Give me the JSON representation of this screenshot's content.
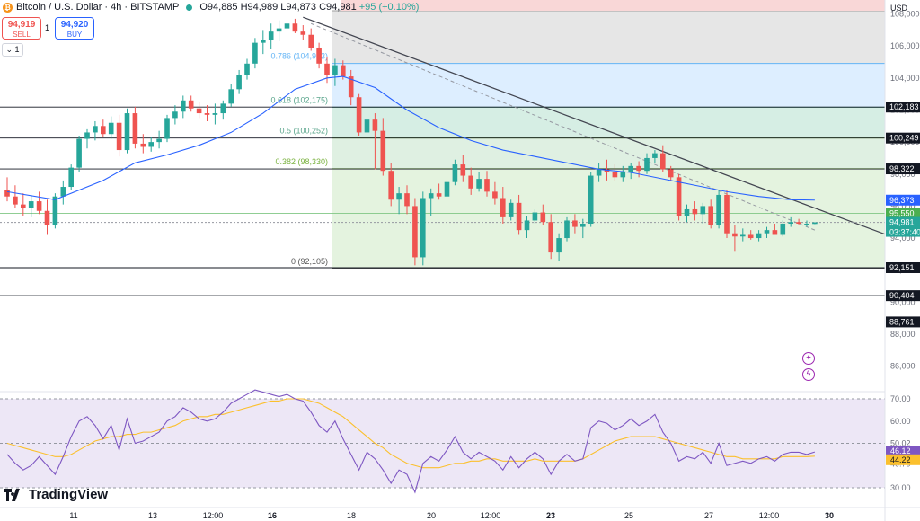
{
  "header": {
    "symbol": "Bitcoin / U.S. Dollar · 4h · BITSTAMP",
    "ohlc": {
      "o": "O94,885",
      "h": "H94,989",
      "l": "L94,873",
      "c": "C94,981",
      "chg": "+95 (+0.10%)"
    },
    "coin_glyph": "₿"
  },
  "trade": {
    "sell_price": "94,919",
    "sell_label": "SELL",
    "spread": "1",
    "buy_price": "94,920",
    "buy_label": "BUY"
  },
  "collapse_label": "⌄ 1",
  "currency": "USD",
  "logo": "TradingView",
  "x_axis_labels": [
    "11",
    "13",
    "12:00",
    "16",
    "18",
    "20",
    "12:00",
    "23",
    "25",
    "27",
    "12:00",
    "30"
  ],
  "price_ticks": [
    "108,000",
    "106,000",
    "104,000",
    "102,000",
    "100,000",
    "98,000",
    "96,000",
    "94,000",
    "92,000",
    "90,000",
    "88,000",
    "86,000"
  ],
  "rsi_ticks": [
    "70.00",
    "60.00",
    "50.02",
    "40.70",
    "30.00"
  ],
  "price_labels": [
    {
      "text": "102,183",
      "kind": "dark"
    },
    {
      "text": "100,249",
      "kind": "dark"
    },
    {
      "text": "98,322",
      "kind": "dark"
    },
    {
      "text": "96,373",
      "kind": "blue"
    },
    {
      "text": "95,550",
      "kind": "green"
    },
    {
      "text": "94,981",
      "kind": "last"
    },
    {
      "text": "03:37:40",
      "kind": "last"
    },
    {
      "text": "92,151",
      "kind": "dark"
    },
    {
      "text": "90,404",
      "kind": "dark"
    },
    {
      "text": "88,761",
      "kind": "dark"
    }
  ],
  "rsi_labels": [
    {
      "text": "46.12",
      "kind": "purple"
    },
    {
      "text": "44.22",
      "kind": "yellow"
    }
  ],
  "fib_labels": [
    "0.786 (104,913)",
    "0.618 (102,175)",
    "0.5 (100,252)",
    "0.382 (98,330)",
    "0 (92,105)"
  ],
  "colors": {
    "up": "#26a69a",
    "down": "#ef5350",
    "ma": "#2962ff",
    "rsi": "#7e57c2",
    "rsi_ma": "#fbc02d",
    "trend": "#434651"
  },
  "chart_data": {
    "type": "candlestick",
    "interval": "4h",
    "ohlc": [
      [
        97000,
        97800,
        96300,
        96600
      ],
      [
        96600,
        97300,
        95900,
        96100
      ],
      [
        96100,
        96800,
        95400,
        95900
      ],
      [
        95900,
        96700,
        95300,
        96300
      ],
      [
        96300,
        96900,
        95500,
        95700
      ],
      [
        95700,
        96400,
        94200,
        94800
      ],
      [
        94800,
        96800,
        94600,
        96600
      ],
      [
        96600,
        97600,
        96100,
        97200
      ],
      [
        97200,
        98600,
        97000,
        98400
      ],
      [
        98400,
        100400,
        98100,
        100200
      ],
      [
        100200,
        100800,
        99600,
        100600
      ],
      [
        100600,
        101300,
        100100,
        101000
      ],
      [
        101000,
        101400,
        100300,
        100500
      ],
      [
        100500,
        101600,
        100200,
        101200
      ],
      [
        101200,
        101700,
        99100,
        99500
      ],
      [
        99500,
        102100,
        99300,
        101800
      ],
      [
        101800,
        102200,
        99600,
        99900
      ],
      [
        99900,
        100500,
        99300,
        99700
      ],
      [
        99700,
        100300,
        99400,
        100000
      ],
      [
        100000,
        100700,
        99600,
        100200
      ],
      [
        100200,
        101700,
        100000,
        101500
      ],
      [
        101500,
        102300,
        101100,
        101900
      ],
      [
        101900,
        102900,
        101500,
        102600
      ],
      [
        102600,
        102900,
        101900,
        102100
      ],
      [
        102100,
        102500,
        101500,
        101800
      ],
      [
        101800,
        102300,
        101300,
        101700
      ],
      [
        101700,
        102400,
        101100,
        101800
      ],
      [
        101800,
        102600,
        101400,
        102400
      ],
      [
        102400,
        103600,
        102200,
        103300
      ],
      [
        103300,
        104500,
        103000,
        104200
      ],
      [
        104200,
        105200,
        103900,
        104900
      ],
      [
        104900,
        106500,
        104600,
        106200
      ],
      [
        106200,
        107000,
        105500,
        106400
      ],
      [
        106400,
        107400,
        105800,
        106900
      ],
      [
        106900,
        107600,
        106300,
        107100
      ],
      [
        107100,
        107800,
        106700,
        107400
      ],
      [
        107400,
        107700,
        106800,
        106900
      ],
      [
        106900,
        107300,
        106400,
        106700
      ],
      [
        106700,
        107100,
        105700,
        105900
      ],
      [
        105900,
        106200,
        104600,
        104900
      ],
      [
        104900,
        105300,
        103700,
        104200
      ],
      [
        104200,
        105200,
        103500,
        104800
      ],
      [
        104800,
        105100,
        103900,
        104100
      ],
      [
        104100,
        104500,
        102300,
        102800
      ],
      [
        102800,
        103000,
        100400,
        100600
      ],
      [
        100600,
        101700,
        99100,
        101400
      ],
      [
        101400,
        101800,
        98300,
        100700
      ],
      [
        100700,
        101500,
        97900,
        98200
      ],
      [
        98200,
        98700,
        96000,
        96400
      ],
      [
        96400,
        97200,
        95500,
        96800
      ],
      [
        96800,
        97300,
        95500,
        96000
      ],
      [
        96000,
        96500,
        92300,
        92800
      ],
      [
        92800,
        96900,
        92300,
        96500
      ],
      [
        96500,
        97100,
        95400,
        96800
      ],
      [
        96800,
        97400,
        96400,
        96600
      ],
      [
        96600,
        97800,
        96400,
        97500
      ],
      [
        97500,
        98900,
        97300,
        98600
      ],
      [
        98600,
        99200,
        97500,
        97900
      ],
      [
        97900,
        98400,
        96700,
        97100
      ],
      [
        97100,
        98100,
        96900,
        97700
      ],
      [
        97700,
        98200,
        96600,
        96900
      ],
      [
        96900,
        97500,
        96100,
        96500
      ],
      [
        96500,
        97200,
        94900,
        95300
      ],
      [
        95300,
        96400,
        95100,
        96200
      ],
      [
        96200,
        96700,
        94200,
        94500
      ],
      [
        94500,
        95400,
        94000,
        95100
      ],
      [
        95100,
        95800,
        94900,
        95600
      ],
      [
        95600,
        96100,
        94800,
        95000
      ],
      [
        95000,
        95500,
        92700,
        93100
      ],
      [
        93100,
        94300,
        92600,
        94000
      ],
      [
        94000,
        95300,
        93800,
        95100
      ],
      [
        95100,
        95500,
        94300,
        94700
      ],
      [
        94700,
        95200,
        94000,
        94900
      ],
      [
        94900,
        98100,
        94700,
        97900
      ],
      [
        97900,
        98700,
        97500,
        98300
      ],
      [
        98300,
        98900,
        97600,
        98100
      ],
      [
        98100,
        98600,
        97600,
        97800
      ],
      [
        97800,
        98500,
        97500,
        98100
      ],
      [
        98100,
        98700,
        97700,
        98500
      ],
      [
        98500,
        98800,
        97800,
        98200
      ],
      [
        98200,
        99300,
        98000,
        99000
      ],
      [
        99000,
        99500,
        98700,
        99300
      ],
      [
        99300,
        99800,
        98100,
        98300
      ],
      [
        98300,
        98500,
        97600,
        97800
      ],
      [
        97800,
        98000,
        95100,
        95400
      ],
      [
        95400,
        96100,
        95000,
        95800
      ],
      [
        95800,
        96300,
        95100,
        95500
      ],
      [
        95500,
        96200,
        94900,
        96000
      ],
      [
        96000,
        96400,
        94600,
        94800
      ],
      [
        94800,
        97000,
        94600,
        96700
      ],
      [
        96700,
        97000,
        94000,
        94300
      ],
      [
        94300,
        94800,
        93200,
        94100
      ],
      [
        94100,
        94600,
        93800,
        94200
      ],
      [
        94200,
        94500,
        93900,
        94000
      ],
      [
        94000,
        94500,
        93800,
        94300
      ],
      [
        94300,
        94700,
        94000,
        94500
      ],
      [
        94500,
        94900,
        94200,
        94200
      ],
      [
        94200,
        95100,
        94100,
        94900
      ],
      [
        94900,
        95300,
        94700,
        95000
      ],
      [
        95000,
        95200,
        94800,
        94900
      ],
      [
        94900,
        95100,
        94700,
        94900
      ],
      [
        94885,
        94989,
        94873,
        94981
      ]
    ],
    "ma_line": [
      [
        0,
        96900
      ],
      [
        6,
        96400
      ],
      [
        12,
        97600
      ],
      [
        16,
        98700
      ],
      [
        20,
        99200
      ],
      [
        24,
        99800
      ],
      [
        28,
        100600
      ],
      [
        32,
        101800
      ],
      [
        36,
        103300
      ],
      [
        40,
        104000
      ],
      [
        42,
        104100
      ],
      [
        46,
        103400
      ],
      [
        50,
        102000
      ],
      [
        54,
        100900
      ],
      [
        58,
        100100
      ],
      [
        62,
        99500
      ],
      [
        66,
        99100
      ],
      [
        70,
        98700
      ],
      [
        74,
        98300
      ],
      [
        78,
        98100
      ],
      [
        82,
        97700
      ],
      [
        86,
        97300
      ],
      [
        90,
        96900
      ],
      [
        94,
        96600
      ],
      [
        98,
        96400
      ],
      [
        101,
        96373
      ]
    ],
    "levels": [
      102183,
      100249,
      98322,
      95550,
      92151,
      90404,
      88761
    ],
    "fibonacci": [
      {
        "ratio": "1",
        "price": 108200
      },
      {
        "ratio": "0.786",
        "price": 104913
      },
      {
        "ratio": "0.618",
        "price": 102175
      },
      {
        "ratio": "0.5",
        "price": 100252
      },
      {
        "ratio": "0.382",
        "price": 98330
      },
      {
        "ratio": "0",
        "price": 92105
      }
    ],
    "trendline": [
      [
        37,
        107800
      ],
      [
        110,
        94200
      ]
    ],
    "dashed_trend": [
      [
        38,
        107400
      ],
      [
        101,
        94500
      ]
    ],
    "rsi": [
      45,
      41,
      38,
      40,
      44,
      40,
      36,
      44,
      53,
      60,
      62,
      58,
      52,
      58,
      47,
      61,
      50,
      51,
      53,
      55,
      60,
      62,
      66,
      64,
      61,
      60,
      61,
      64,
      68,
      70,
      72,
      74,
      73,
      72,
      71,
      72,
      70,
      69,
      64,
      58,
      55,
      60,
      52,
      45,
      38,
      46,
      43,
      38,
      32,
      38,
      36,
      28,
      41,
      44,
      42,
      47,
      53,
      46,
      43,
      46,
      44,
      42,
      38,
      44,
      39,
      43,
      46,
      43,
      36,
      42,
      45,
      42,
      43,
      57,
      60,
      59,
      56,
      58,
      61,
      58,
      60,
      63,
      55,
      50,
      42,
      44,
      43,
      46,
      41,
      50,
      40,
      41,
      42,
      41,
      43,
      44,
      42,
      45,
      46,
      46,
      45,
      46.12
    ],
    "rsi_ma": [
      50,
      49,
      48,
      47,
      46,
      45,
      44,
      44,
      45,
      47,
      49,
      51,
      52,
      53,
      53,
      54,
      54,
      55,
      55,
      56,
      57,
      58,
      60,
      61,
      62,
      62,
      63,
      63,
      64,
      65,
      66,
      67,
      68,
      69,
      69,
      70,
      70,
      70,
      69,
      68,
      66,
      64,
      62,
      59,
      56,
      53,
      50,
      48,
      45,
      43,
      41,
      40,
      39,
      39,
      39,
      40,
      41,
      41,
      42,
      42,
      43,
      43,
      42,
      42,
      42,
      42,
      43,
      42,
      42,
      42,
      42,
      42,
      43,
      45,
      47,
      49,
      51,
      52,
      53,
      53,
      53,
      53,
      52,
      51,
      50,
      49,
      48,
      47,
      46,
      45,
      44,
      44,
      43,
      43,
      43,
      43,
      43,
      44,
      44,
      44,
      44,
      44.22
    ]
  }
}
